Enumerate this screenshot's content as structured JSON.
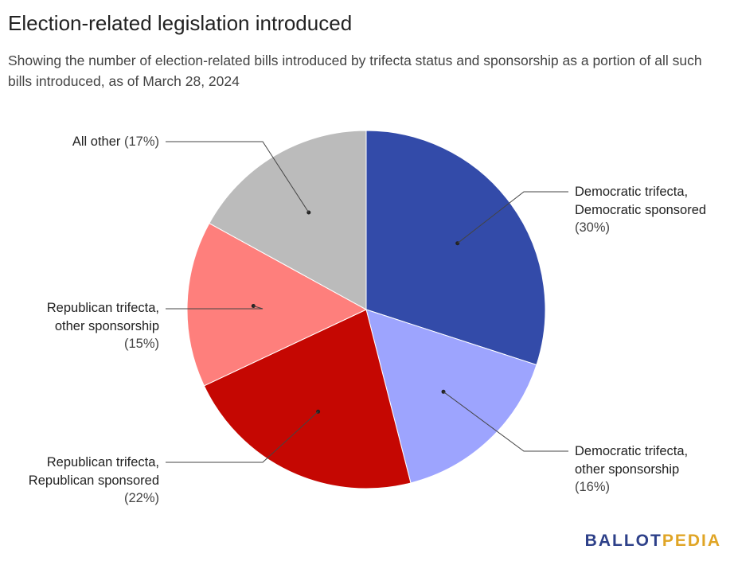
{
  "title": "Election-related legislation introduced",
  "subtitle": "Showing the number of election-related bills introduced by trifecta status and sponsorship as a portion of all such bills introduced, as of March 28, 2024",
  "brand": {
    "part1": "BALLOT",
    "part2": "PEDIA",
    "color1": "#2d4089",
    "color2": "#e0a526"
  },
  "chart_data": {
    "type": "pie",
    "title": "Election-related legislation introduced",
    "slices": [
      {
        "label_lines": [
          "Democratic trifecta,",
          "Democratic sponsored"
        ],
        "pct_label": "(30%)",
        "value": 30,
        "color": "#334ba9"
      },
      {
        "label_lines": [
          "Democratic trifecta,",
          "other sponsorship"
        ],
        "pct_label": "(16%)",
        "value": 16,
        "color": "#9da4fe"
      },
      {
        "label_lines": [
          "Republican trifecta,",
          "Republican sponsored"
        ],
        "pct_label": "(22%)",
        "value": 22,
        "color": "#c50702"
      },
      {
        "label_lines": [
          "Republican trifecta,",
          "other sponsorship"
        ],
        "pct_label": "(15%)",
        "value": 15,
        "color": "#fe7f7c"
      },
      {
        "label_lines": [
          "All other"
        ],
        "pct_label": "(17%)",
        "value": 17,
        "color": "#bbbbbb"
      }
    ]
  }
}
